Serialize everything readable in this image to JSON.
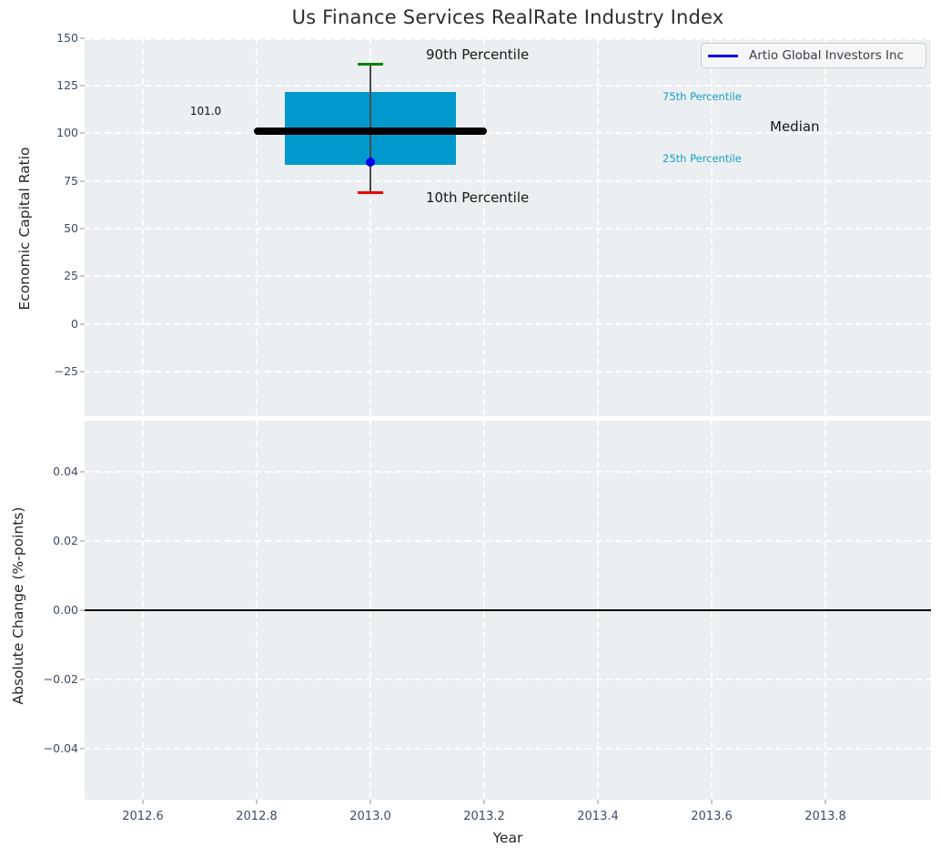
{
  "title": "Us Finance Services RealRate Industry Index",
  "legend": {
    "label": "Artio Global Investors Inc",
    "line_color": "#0000ee"
  },
  "colors": {
    "plot_background": "#eceff1",
    "box_fill": "#0099cd",
    "p90_cap": "#008000",
    "p10_cap": "#ee0000",
    "median_line": "#000000",
    "whisker": "#4a4a4a",
    "company_dot": "#0000ee",
    "percentile_text": "#149fc8",
    "zero_line": "#000000"
  },
  "chart_data": {
    "type": "box",
    "title": "Us Finance Services RealRate Industry Index",
    "xlabel": "Year",
    "x": 2013.0,
    "percentiles": {
      "p10": 69,
      "p25": 83.5,
      "median": 101,
      "p75": 121.5,
      "p90": 136
    },
    "median_value_label": "101.0",
    "series": [
      {
        "name": "Artio Global Investors Inc",
        "x": [
          2013.0
        ],
        "values": [
          85
        ]
      }
    ],
    "annotations": {
      "p90": "90th Percentile",
      "p75": "75th Percentile",
      "median": "Median",
      "p25": "25th Percentile",
      "p10": "10th Percentile"
    },
    "top_axis": {
      "ylabel": "Economic Capital Ratio",
      "yticks": [
        150,
        125,
        100,
        75,
        50,
        25,
        0,
        -25
      ],
      "ylim": [
        -48.5,
        150
      ],
      "grid": "white dashed"
    },
    "bottom_axis": {
      "ylabel": "Absolute Change (%-points)",
      "yticks": [
        0.04,
        0.02,
        0.0,
        -0.02,
        -0.04
      ],
      "ylim": [
        -0.055,
        0.055
      ],
      "zero_line": 0.0
    },
    "xticks": [
      2012.6,
      2012.8,
      2013.0,
      2013.2,
      2013.4,
      2013.6,
      2013.8
    ],
    "xlim": [
      2012.5,
      2013.99
    ],
    "legend_position": "upper right"
  }
}
